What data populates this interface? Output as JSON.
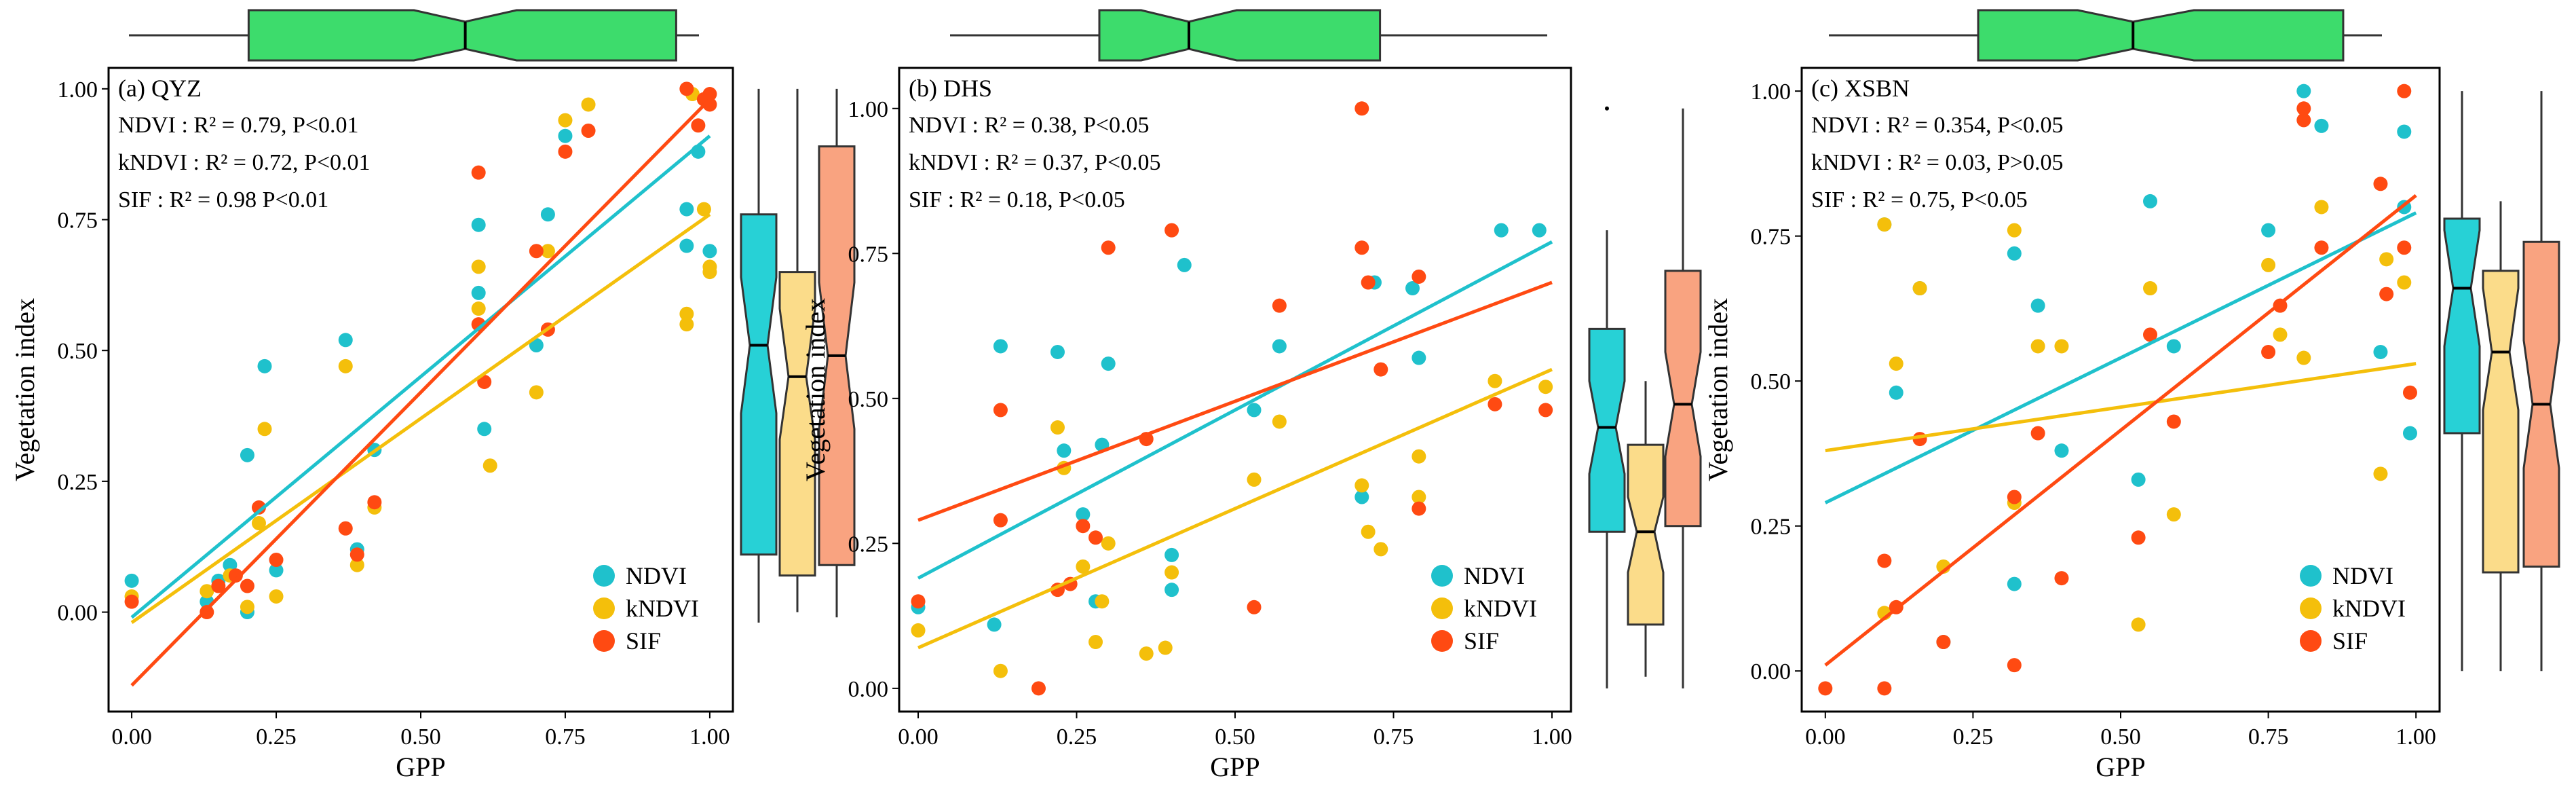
{
  "colors": {
    "NDVI": "#1fc1cc",
    "kNDVI": "#f4bf0b",
    "SIF": "#ff4a12",
    "box_top": "#3ddc6c"
  },
  "chart_data": [
    {
      "type": "scatter",
      "panel_label": "(a) QYZ",
      "xlabel": "GPP",
      "ylabel": "Vegetation index",
      "xlim": [
        -0.04,
        1.04
      ],
      "ylim": [
        -0.19,
        1.04
      ],
      "xticks": [
        "0.00",
        "0.25",
        "0.50",
        "0.75",
        "1.00"
      ],
      "yticks": [
        "0.00",
        "0.25",
        "0.50",
        "0.75",
        "1.00"
      ],
      "stats": [
        "NDVI : R² = 0.79, P<0.01",
        "kNDVI : R² = 0.72, P<0.01",
        "SIF : R² = 0.98 P<0.01"
      ],
      "legend": [
        "NDVI",
        "kNDVI",
        "SIF"
      ],
      "series": [
        {
          "name": "NDVI",
          "points": [
            [
              0.0,
              0.06
            ],
            [
              0.13,
              0.02
            ],
            [
              0.15,
              0.06
            ],
            [
              0.17,
              0.09
            ],
            [
              0.2,
              0.0
            ],
            [
              0.2,
              0.3
            ],
            [
              0.23,
              0.47
            ],
            [
              0.25,
              0.08
            ],
            [
              0.37,
              0.52
            ],
            [
              0.39,
              0.12
            ],
            [
              0.42,
              0.31
            ],
            [
              0.6,
              0.74
            ],
            [
              0.6,
              0.61
            ],
            [
              0.61,
              0.35
            ],
            [
              0.7,
              0.51
            ],
            [
              0.72,
              0.76
            ],
            [
              0.75,
              0.91
            ],
            [
              0.96,
              0.77
            ],
            [
              0.96,
              0.7
            ],
            [
              0.98,
              0.88
            ],
            [
              1.0,
              0.69
            ]
          ]
        },
        {
          "name": "kNDVI",
          "points": [
            [
              0.0,
              0.03
            ],
            [
              0.13,
              0.04
            ],
            [
              0.17,
              0.07
            ],
            [
              0.2,
              0.01
            ],
            [
              0.22,
              0.17
            ],
            [
              0.23,
              0.35
            ],
            [
              0.25,
              0.03
            ],
            [
              0.37,
              0.47
            ],
            [
              0.39,
              0.09
            ],
            [
              0.42,
              0.2
            ],
            [
              0.6,
              0.66
            ],
            [
              0.6,
              0.58
            ],
            [
              0.62,
              0.28
            ],
            [
              0.7,
              0.42
            ],
            [
              0.72,
              0.69
            ],
            [
              0.75,
              0.94
            ],
            [
              0.79,
              0.97
            ],
            [
              0.96,
              0.57
            ],
            [
              0.96,
              0.55
            ],
            [
              0.97,
              0.99
            ],
            [
              0.99,
              0.77
            ],
            [
              1.0,
              0.66
            ],
            [
              1.0,
              0.65
            ]
          ]
        },
        {
          "name": "SIF",
          "points": [
            [
              0.0,
              0.02
            ],
            [
              0.13,
              0.0
            ],
            [
              0.15,
              0.05
            ],
            [
              0.18,
              0.07
            ],
            [
              0.2,
              0.05
            ],
            [
              0.22,
              0.2
            ],
            [
              0.25,
              0.1
            ],
            [
              0.37,
              0.16
            ],
            [
              0.39,
              0.11
            ],
            [
              0.42,
              0.21
            ],
            [
              0.6,
              0.84
            ],
            [
              0.6,
              0.55
            ],
            [
              0.61,
              0.44
            ],
            [
              0.72,
              0.54
            ],
            [
              0.7,
              0.69
            ],
            [
              0.75,
              0.88
            ],
            [
              0.79,
              0.92
            ],
            [
              0.96,
              1.0
            ],
            [
              0.99,
              0.98
            ],
            [
              1.0,
              0.99
            ],
            [
              1.0,
              0.97
            ],
            [
              0.98,
              0.93
            ]
          ]
        }
      ],
      "fits": [
        {
          "name": "NDVI",
          "x": [
            0.0,
            1.0
          ],
          "y": [
            -0.01,
            0.91
          ]
        },
        {
          "name": "kNDVI",
          "x": [
            0.0,
            1.0
          ],
          "y": [
            -0.02,
            0.76
          ]
        },
        {
          "name": "SIF",
          "x": [
            0.0,
            1.0
          ],
          "y": [
            -0.14,
            0.98
          ]
        }
      ],
      "box_x": {
        "q1": 0.21,
        "median": 0.59,
        "q3": 0.96,
        "min": 0.0,
        "max": 1.0,
        "notch": [
          0.5,
          0.68
        ]
      },
      "box_y": [
        {
          "name": "NDVI",
          "min": -0.02,
          "q1": 0.11,
          "median": 0.51,
          "q3": 0.76,
          "max": 1.0,
          "notch": [
            0.38,
            0.64
          ]
        },
        {
          "name": "kNDVI",
          "min": 0.0,
          "q1": 0.07,
          "median": 0.45,
          "q3": 0.65,
          "max": 1.0,
          "notch": [
            0.33,
            0.58
          ]
        },
        {
          "name": "SIF",
          "min": -0.01,
          "q1": 0.09,
          "median": 0.49,
          "q3": 0.89,
          "max": 1.0,
          "notch": [
            0.35,
            0.63
          ]
        }
      ]
    },
    {
      "type": "scatter",
      "panel_label": "(b) DHS",
      "xlabel": "GPP",
      "ylabel": "Vegetation index",
      "xlim": [
        -0.03,
        1.03
      ],
      "ylim": [
        -0.04,
        1.07
      ],
      "xticks": [
        "0.00",
        "0.25",
        "0.50",
        "0.75",
        "1.00"
      ],
      "yticks": [
        "0.00",
        "0.25",
        "0.50",
        "0.75",
        "1.00"
      ],
      "stats": [
        "NDVI :  R² = 0.38, P<0.05",
        "kNDVI : R² = 0.37, P<0.05",
        "SIF :  R² = 0.18, P<0.05"
      ],
      "legend": [
        "NDVI",
        "kNDVI",
        "SIF"
      ],
      "series": [
        {
          "name": "NDVI",
          "points": [
            [
              0.0,
              0.14
            ],
            [
              0.12,
              0.11
            ],
            [
              0.13,
              0.59
            ],
            [
              0.22,
              0.58
            ],
            [
              0.23,
              0.41
            ],
            [
              0.26,
              0.3
            ],
            [
              0.28,
              0.15
            ],
            [
              0.29,
              0.42
            ],
            [
              0.3,
              0.56
            ],
            [
              0.4,
              0.17
            ],
            [
              0.4,
              0.23
            ],
            [
              0.42,
              0.73
            ],
            [
              0.53,
              0.48
            ],
            [
              0.57,
              0.59
            ],
            [
              0.7,
              0.33
            ],
            [
              0.72,
              0.7
            ],
            [
              0.78,
              0.69
            ],
            [
              0.79,
              0.57
            ],
            [
              0.92,
              0.79
            ],
            [
              0.98,
              0.79
            ]
          ]
        },
        {
          "name": "kNDVI",
          "points": [
            [
              0.0,
              0.1
            ],
            [
              0.13,
              0.03
            ],
            [
              0.22,
              0.45
            ],
            [
              0.23,
              0.38
            ],
            [
              0.26,
              0.21
            ],
            [
              0.28,
              0.08
            ],
            [
              0.29,
              0.15
            ],
            [
              0.3,
              0.25
            ],
            [
              0.36,
              0.06
            ],
            [
              0.39,
              0.07
            ],
            [
              0.4,
              0.2
            ],
            [
              0.53,
              0.36
            ],
            [
              0.57,
              0.46
            ],
            [
              0.7,
              0.35
            ],
            [
              0.71,
              0.27
            ],
            [
              0.73,
              0.24
            ],
            [
              0.79,
              0.33
            ],
            [
              0.79,
              0.4
            ],
            [
              0.91,
              0.53
            ],
            [
              0.99,
              0.52
            ]
          ]
        },
        {
          "name": "SIF",
          "points": [
            [
              0.0,
              0.15
            ],
            [
              0.13,
              0.48
            ],
            [
              0.13,
              0.29
            ],
            [
              0.19,
              0.0
            ],
            [
              0.22,
              0.17
            ],
            [
              0.24,
              0.18
            ],
            [
              0.26,
              0.28
            ],
            [
              0.28,
              0.26
            ],
            [
              0.3,
              0.76
            ],
            [
              0.36,
              0.43
            ],
            [
              0.4,
              0.79
            ],
            [
              0.53,
              0.14
            ],
            [
              0.57,
              0.66
            ],
            [
              0.7,
              1.0
            ],
            [
              0.7,
              0.76
            ],
            [
              0.71,
              0.7
            ],
            [
              0.73,
              0.55
            ],
            [
              0.79,
              0.71
            ],
            [
              0.79,
              0.31
            ],
            [
              0.91,
              0.49
            ],
            [
              0.99,
              0.48
            ]
          ]
        }
      ],
      "fits": [
        {
          "name": "NDVI",
          "x": [
            0.0,
            1.0
          ],
          "y": [
            0.19,
            0.77
          ]
        },
        {
          "name": "kNDVI",
          "x": [
            0.0,
            1.0
          ],
          "y": [
            0.07,
            0.55
          ]
        },
        {
          "name": "SIF",
          "x": [
            0.0,
            1.0
          ],
          "y": [
            0.29,
            0.7
          ]
        }
      ],
      "box_x": {
        "q1": 0.25,
        "median": 0.4,
        "q3": 0.72,
        "min": 0.0,
        "max": 1.0,
        "notch": [
          0.32,
          0.48
        ]
      },
      "box_y": [
        {
          "name": "NDVI",
          "min": 0.0,
          "q1": 0.27,
          "median": 0.45,
          "q3": 0.62,
          "max": 0.79,
          "notch": [
            0.37,
            0.53
          ],
          "outliers": [
            1.0
          ]
        },
        {
          "name": "kNDVI",
          "min": 0.02,
          "q1": 0.11,
          "median": 0.27,
          "q3": 0.42,
          "max": 0.53,
          "notch": [
            0.2,
            0.33
          ]
        },
        {
          "name": "SIF",
          "min": 0.0,
          "q1": 0.28,
          "median": 0.49,
          "q3": 0.72,
          "max": 1.0,
          "notch": [
            0.4,
            0.58
          ]
        }
      ]
    },
    {
      "type": "scatter",
      "panel_label": "(c) XSBN",
      "xlabel": "GPP",
      "ylabel": "Vegetation index",
      "xlim": [
        -0.04,
        1.04
      ],
      "ylim": [
        -0.07,
        1.04
      ],
      "xticks": [
        "0.00",
        "0.25",
        "0.50",
        "0.75",
        "1.00"
      ],
      "yticks": [
        "0.00",
        "0.25",
        "0.50",
        "0.75",
        "1.00"
      ],
      "stats": [
        "NDVI :  R² = 0.354, P<0.05",
        "kNDVI : R² = 0.03, P>0.05",
        "SIF :  R² = 0.75, P<0.05"
      ],
      "legend": [
        "NDVI",
        "kNDVI",
        "SIF"
      ],
      "series": [
        {
          "name": "NDVI",
          "points": [
            [
              0.1,
              0.77
            ],
            [
              0.12,
              0.48
            ],
            [
              0.16,
              0.66
            ],
            [
              0.2,
              0.05
            ],
            [
              0.32,
              0.15
            ],
            [
              0.32,
              0.72
            ],
            [
              0.36,
              0.63
            ],
            [
              0.4,
              0.38
            ],
            [
              0.53,
              0.33
            ],
            [
              0.55,
              0.81
            ],
            [
              0.59,
              0.56
            ],
            [
              0.75,
              0.76
            ],
            [
              0.81,
              1.0
            ],
            [
              0.84,
              0.94
            ],
            [
              0.94,
              0.55
            ],
            [
              0.98,
              0.93
            ],
            [
              0.98,
              0.8
            ],
            [
              0.99,
              0.41
            ]
          ]
        },
        {
          "name": "kNDVI",
          "points": [
            [
              0.1,
              0.1
            ],
            [
              0.1,
              0.77
            ],
            [
              0.12,
              0.53
            ],
            [
              0.16,
              0.66
            ],
            [
              0.2,
              0.18
            ],
            [
              0.32,
              0.76
            ],
            [
              0.32,
              0.29
            ],
            [
              0.36,
              0.56
            ],
            [
              0.4,
              0.56
            ],
            [
              0.53,
              0.08
            ],
            [
              0.55,
              0.66
            ],
            [
              0.59,
              0.27
            ],
            [
              0.75,
              0.7
            ],
            [
              0.77,
              0.58
            ],
            [
              0.81,
              0.54
            ],
            [
              0.84,
              0.8
            ],
            [
              0.94,
              0.34
            ],
            [
              0.95,
              0.71
            ],
            [
              0.98,
              0.67
            ]
          ]
        },
        {
          "name": "SIF",
          "points": [
            [
              0.0,
              -0.03
            ],
            [
              0.1,
              -0.03
            ],
            [
              0.1,
              0.19
            ],
            [
              0.12,
              0.11
            ],
            [
              0.16,
              0.4
            ],
            [
              0.2,
              0.05
            ],
            [
              0.32,
              0.3
            ],
            [
              0.32,
              0.01
            ],
            [
              0.36,
              0.41
            ],
            [
              0.4,
              0.16
            ],
            [
              0.53,
              0.23
            ],
            [
              0.55,
              0.58
            ],
            [
              0.59,
              0.43
            ],
            [
              0.75,
              0.55
            ],
            [
              0.77,
              0.63
            ],
            [
              0.81,
              0.95
            ],
            [
              0.81,
              0.97
            ],
            [
              0.84,
              0.73
            ],
            [
              0.94,
              0.84
            ],
            [
              0.95,
              0.65
            ],
            [
              0.98,
              1.0
            ],
            [
              0.98,
              0.73
            ],
            [
              0.99,
              0.48
            ]
          ]
        }
      ],
      "fits": [
        {
          "name": "NDVI",
          "x": [
            0.0,
            1.0
          ],
          "y": [
            0.29,
            0.79
          ]
        },
        {
          "name": "kNDVI",
          "x": [
            0.0,
            1.0
          ],
          "y": [
            0.38,
            0.53
          ]
        },
        {
          "name": "SIF",
          "x": [
            0.0,
            1.0
          ],
          "y": [
            0.01,
            0.82
          ]
        }
      ],
      "box_x": {
        "q1": 0.27,
        "median": 0.55,
        "q3": 0.93,
        "min": 0.0,
        "max": 1.0,
        "notch": [
          0.45,
          0.66
        ]
      },
      "box_y": [
        {
          "name": "NDVI",
          "min": 0.0,
          "q1": 0.41,
          "median": 0.66,
          "q3": 0.78,
          "max": 1.0,
          "notch": [
            0.56,
            0.76
          ]
        },
        {
          "name": "kNDVI",
          "min": 0.0,
          "q1": 0.17,
          "median": 0.55,
          "q3": 0.69,
          "max": 0.81,
          "notch": [
            0.45,
            0.66
          ]
        },
        {
          "name": "SIF",
          "min": 0.0,
          "q1": 0.18,
          "median": 0.46,
          "q3": 0.74,
          "max": 1.0,
          "notch": [
            0.35,
            0.57
          ]
        }
      ]
    }
  ]
}
